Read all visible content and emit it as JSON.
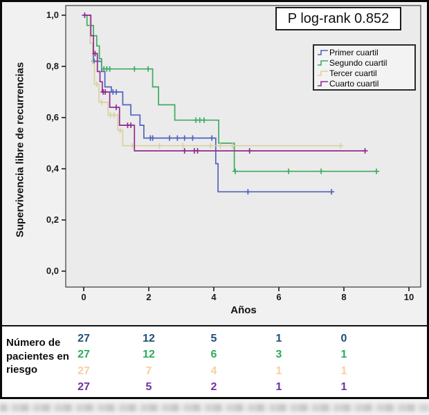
{
  "chart_data": {
    "type": "line",
    "subtype": "kaplan-meier-step",
    "title": "",
    "xlabel": "Años",
    "ylabel": "Supervivencia libre de recurrencias",
    "xlim": [
      0,
      10.4
    ],
    "ylim": [
      0,
      1.0
    ],
    "x_ticks": [
      0,
      2,
      4,
      6,
      8,
      10
    ],
    "x_tick_labels": [
      "0",
      "2",
      "4",
      "6",
      "8",
      "10"
    ],
    "y_ticks": [
      0.0,
      0.2,
      0.4,
      0.6,
      0.8,
      1.0
    ],
    "y_tick_labels": [
      "0,0",
      "0,2",
      "0,4",
      "0,6",
      "0,8",
      "1,0"
    ],
    "grid": false,
    "legend_position": "upper-right-inside",
    "annotations": [
      {
        "text": "P log-rank 0.852",
        "position": "top-right"
      }
    ],
    "series": [
      {
        "name": "Primer cuartil",
        "color": "#5161bf",
        "points": [
          [
            0,
            1.0
          ],
          [
            0.2,
            0.89
          ],
          [
            0.3,
            0.82
          ],
          [
            0.55,
            0.78
          ],
          [
            0.65,
            0.72
          ],
          [
            0.85,
            0.7
          ],
          [
            1.2,
            0.65
          ],
          [
            1.45,
            0.61
          ],
          [
            1.73,
            0.57
          ],
          [
            1.85,
            0.52
          ],
          [
            4.06,
            0.42
          ],
          [
            4.13,
            0.31
          ],
          [
            7.62,
            0.31
          ]
        ],
        "censor_marks": [
          [
            0.32,
            0.82
          ],
          [
            0.9,
            0.7
          ],
          [
            1.0,
            0.7
          ],
          [
            2.05,
            0.52
          ],
          [
            2.12,
            0.52
          ],
          [
            2.64,
            0.52
          ],
          [
            2.88,
            0.52
          ],
          [
            3.1,
            0.52
          ],
          [
            3.35,
            0.52
          ],
          [
            3.94,
            0.52
          ],
          [
            5.05,
            0.31
          ],
          [
            7.62,
            0.31
          ]
        ]
      },
      {
        "name": "Segundo cuartil",
        "color": "#3eaa63",
        "points": [
          [
            0,
            1.0
          ],
          [
            0.1,
            0.96
          ],
          [
            0.3,
            0.92
          ],
          [
            0.4,
            0.88
          ],
          [
            0.48,
            0.83
          ],
          [
            0.55,
            0.79
          ],
          [
            2.12,
            0.72
          ],
          [
            2.3,
            0.65
          ],
          [
            2.8,
            0.59
          ],
          [
            4.15,
            0.5
          ],
          [
            4.63,
            0.39
          ],
          [
            9.0,
            0.39
          ]
        ],
        "censor_marks": [
          [
            0.62,
            0.79
          ],
          [
            0.71,
            0.79
          ],
          [
            0.8,
            0.79
          ],
          [
            1.56,
            0.79
          ],
          [
            1.98,
            0.79
          ],
          [
            3.45,
            0.59
          ],
          [
            3.57,
            0.59
          ],
          [
            3.7,
            0.59
          ],
          [
            4.66,
            0.39
          ],
          [
            6.3,
            0.39
          ],
          [
            7.3,
            0.39
          ],
          [
            9.0,
            0.39
          ]
        ]
      },
      {
        "name": "Tercer cuartil",
        "color": "#d8d1a0",
        "points": [
          [
            0,
            1.0
          ],
          [
            0.2,
            0.89
          ],
          [
            0.27,
            0.81
          ],
          [
            0.33,
            0.73
          ],
          [
            0.47,
            0.66
          ],
          [
            0.75,
            0.61
          ],
          [
            1.05,
            0.55
          ],
          [
            1.2,
            0.49
          ],
          [
            7.9,
            0.49
          ]
        ],
        "censor_marks": [
          [
            0.4,
            0.73
          ],
          [
            0.55,
            0.66
          ],
          [
            0.82,
            0.61
          ],
          [
            0.93,
            0.61
          ],
          [
            1.12,
            0.55
          ],
          [
            1.5,
            0.49
          ],
          [
            2.33,
            0.49
          ],
          [
            3.05,
            0.49
          ],
          [
            3.9,
            0.49
          ],
          [
            4.2,
            0.49
          ],
          [
            4.57,
            0.49
          ],
          [
            7.9,
            0.49
          ]
        ]
      },
      {
        "name": "Cuarto cuartil",
        "color": "#8f2b8f",
        "points": [
          [
            0,
            1.0
          ],
          [
            0.22,
            0.92
          ],
          [
            0.3,
            0.85
          ],
          [
            0.42,
            0.78
          ],
          [
            0.5,
            0.74
          ],
          [
            0.57,
            0.7
          ],
          [
            0.8,
            0.64
          ],
          [
            1.1,
            0.57
          ],
          [
            1.56,
            0.47
          ],
          [
            8.65,
            0.47
          ]
        ],
        "censor_marks": [
          [
            0.03,
            1.0
          ],
          [
            0.35,
            0.85
          ],
          [
            0.6,
            0.7
          ],
          [
            0.66,
            0.7
          ],
          [
            1.0,
            0.64
          ],
          [
            1.35,
            0.57
          ],
          [
            1.45,
            0.57
          ],
          [
            3.1,
            0.47
          ],
          [
            3.4,
            0.47
          ],
          [
            3.5,
            0.47
          ],
          [
            5.1,
            0.47
          ],
          [
            8.65,
            0.47
          ]
        ]
      }
    ]
  },
  "risk_table": {
    "label": "Número de pacientes en riesgo",
    "times": [
      0,
      2,
      4,
      6,
      8
    ],
    "rows": [
      {
        "name": "Primer cuartil",
        "color": "#1f4e79",
        "counts": [
          "27",
          "12",
          "5",
          "1",
          "0"
        ]
      },
      {
        "name": "Segundo cuartil",
        "color": "#2bab5b",
        "counts": [
          "27",
          "12",
          "6",
          "3",
          "1"
        ]
      },
      {
        "name": "Tercer cuartil",
        "color": "#f9cda4",
        "counts": [
          "27",
          "7",
          "4",
          "1",
          "1"
        ]
      },
      {
        "name": "Cuarto cuartil",
        "color": "#7030a0",
        "counts": [
          "27",
          "5",
          "2",
          "1",
          "1"
        ]
      }
    ]
  }
}
